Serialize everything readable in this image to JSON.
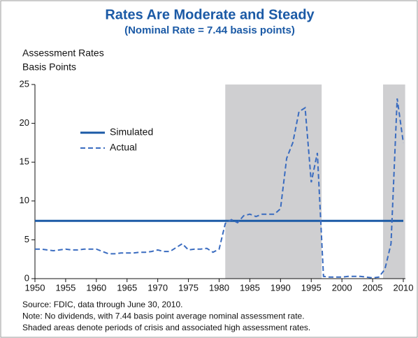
{
  "chart_data": {
    "type": "line",
    "title": "Rates Are Moderate and Steady",
    "subtitle": "(Nominal Rate = 7.44 basis points)",
    "y_label": [
      "Assessment Rates",
      "Basis Points"
    ],
    "xlim": [
      1950,
      2010
    ],
    "ylim": [
      0,
      25
    ],
    "xticks": [
      1950,
      1955,
      1960,
      1965,
      1970,
      1975,
      1980,
      1985,
      1990,
      1995,
      2000,
      2005,
      2010
    ],
    "yticks": [
      0,
      5,
      10,
      15,
      20,
      25
    ],
    "grid": false,
    "shaded_regions": [
      [
        1981,
        1996.7
      ],
      [
        2006.7,
        2010.3
      ]
    ],
    "shade_color": "#cfcfd1",
    "series": [
      {
        "name": "Simulated",
        "color": "#1b5aa6",
        "style": "solid",
        "x": [
          1950,
          2010
        ],
        "values": [
          7.44,
          7.44
        ]
      },
      {
        "name": "Actual",
        "color": "#3a6cc0",
        "style": "dashed",
        "x": [
          1950,
          1951,
          1952,
          1953,
          1954,
          1955,
          1956,
          1957,
          1958,
          1959,
          1960,
          1961,
          1962,
          1963,
          1964,
          1965,
          1966,
          1967,
          1968,
          1969,
          1970,
          1971,
          1972,
          1973,
          1974,
          1975,
          1976,
          1977,
          1978,
          1979,
          1980,
          1981,
          1982,
          1983,
          1984,
          1985,
          1986,
          1987,
          1988,
          1989,
          1990,
          1991,
          1992,
          1993,
          1994,
          1995,
          1996,
          1997,
          1998,
          1999,
          2000,
          2001,
          2002,
          2003,
          2004,
          2005,
          2006,
          2007,
          2008,
          2009,
          2010
        ],
        "values": [
          3.8,
          3.8,
          3.7,
          3.6,
          3.7,
          3.8,
          3.7,
          3.7,
          3.8,
          3.8,
          3.8,
          3.5,
          3.2,
          3.2,
          3.3,
          3.3,
          3.3,
          3.4,
          3.4,
          3.5,
          3.7,
          3.5,
          3.5,
          4.0,
          4.5,
          3.7,
          3.8,
          3.8,
          3.9,
          3.4,
          3.8,
          7.1,
          7.6,
          7.2,
          8.1,
          8.3,
          8.0,
          8.3,
          8.3,
          8.3,
          9.0,
          15.5,
          17.5,
          21.5,
          22.0,
          12.4,
          16.2,
          0.3,
          0.2,
          0.2,
          0.2,
          0.3,
          0.3,
          0.3,
          0.2,
          0.1,
          0.2,
          1.2,
          4.5,
          23.2,
          17.5
        ]
      }
    ],
    "notes": [
      "Source: FDIC, data through June 30, 2010.",
      "Note: No dividends, with 7.44 basis point average nominal assessment rate.",
      "Shaded areas denote periods of crisis and associated high assessment rates."
    ]
  }
}
